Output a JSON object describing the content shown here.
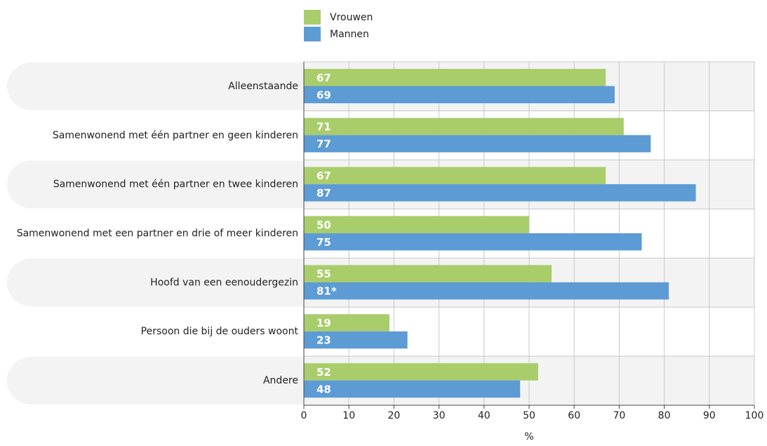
{
  "chart_data": {
    "type": "hbar",
    "categories": [
      "Alleenstaande",
      "Samenwonend met één partner en geen kinderen",
      "Samenwonend met één partner en twee kinderen",
      "Samenwonend met een partner en drie of meer kinderen",
      "Hoofd van een eenoudergezin",
      "Persoon die bij de ouders woont",
      "Andere"
    ],
    "series": [
      {
        "name": "Vrouwen",
        "color": "#a9cd6b",
        "values": [
          67,
          71,
          67,
          50,
          55,
          19,
          52
        ]
      },
      {
        "name": "Mannen",
        "color": "#5d9bd5",
        "values": [
          69,
          77,
          87,
          75,
          81,
          23,
          48
        ],
        "value_labels": [
          "69",
          "77",
          "87",
          "75",
          "81*",
          "23",
          "48"
        ]
      }
    ],
    "xlim": [
      0,
      100
    ],
    "xticks": [
      0,
      10,
      20,
      30,
      40,
      50,
      60,
      70,
      80,
      90,
      100
    ],
    "xlabel": "%",
    "grid": true
  }
}
